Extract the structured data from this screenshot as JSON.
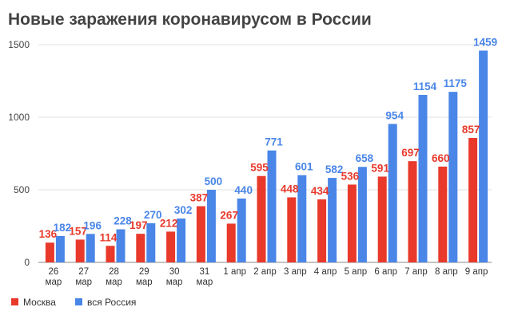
{
  "chart_data": {
    "type": "bar",
    "title": "Новые заражения коронавирусом в России",
    "categories": [
      [
        "26",
        "мар"
      ],
      [
        "27",
        "мар"
      ],
      [
        "28",
        "мар"
      ],
      [
        "29",
        "мар"
      ],
      [
        "30",
        "мар"
      ],
      [
        "31",
        "мар"
      ],
      [
        "1 апр"
      ],
      [
        "2 апр"
      ],
      [
        "3 апр"
      ],
      [
        "4 апр"
      ],
      [
        "5 апр"
      ],
      [
        "6 апр"
      ],
      [
        "7 апр"
      ],
      [
        "8 апр"
      ],
      [
        "9 апр"
      ]
    ],
    "series": [
      {
        "name": "Москва",
        "color": "#e8392b",
        "values": [
          136,
          157,
          114,
          197,
          212,
          387,
          267,
          595,
          448,
          434,
          536,
          591,
          697,
          660,
          857
        ]
      },
      {
        "name": "вся Россия",
        "color": "#4a86e8",
        "values": [
          182,
          196,
          228,
          270,
          302,
          500,
          440,
          771,
          601,
          582,
          658,
          954,
          1154,
          1175,
          1459
        ]
      }
    ],
    "yticks": [
      0,
      500,
      1000,
      1500
    ],
    "ylim": [
      0,
      1500
    ],
    "grid": true,
    "legend_position": "bottom-left"
  }
}
